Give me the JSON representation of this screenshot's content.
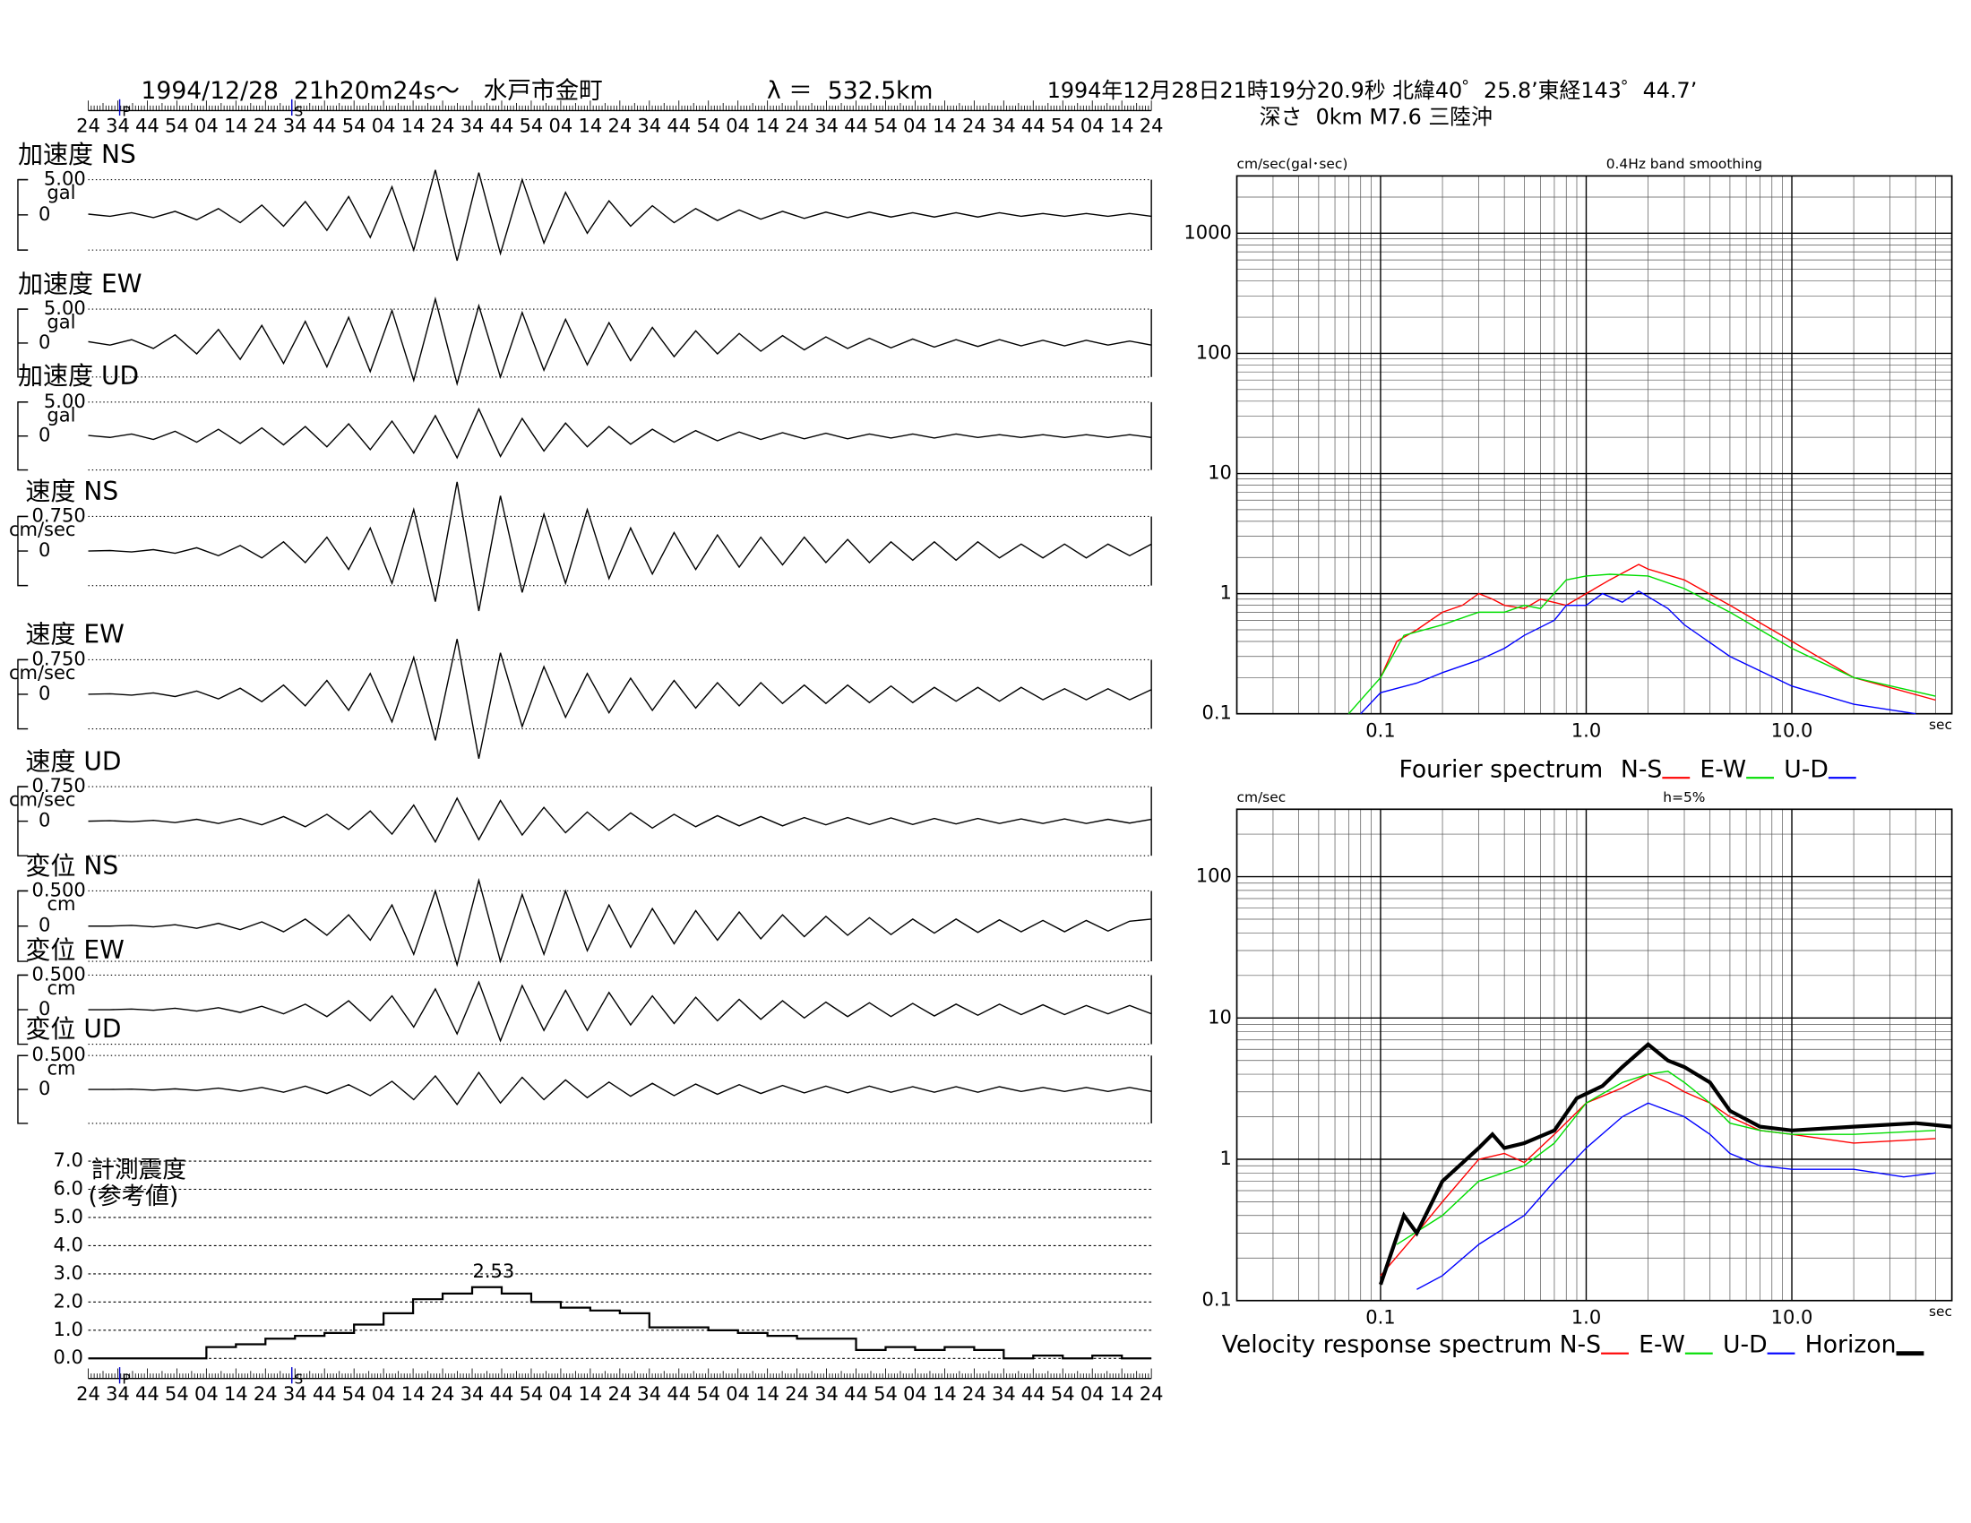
{
  "header": {
    "title": "1994/12/28  21h20m24s～　水戸市金町",
    "distance": "λ ＝  532.5km",
    "origin": "1994年12月28日21時19分20.9秒 北緯40゜25.8’東経143゜44.7’",
    "depth": "深さ  0km M7.6 三陸沖"
  },
  "time_axis": {
    "categories": [
      "24",
      "34",
      "44",
      "54",
      "04",
      "14",
      "24",
      "34",
      "44",
      "54",
      "04",
      "14",
      "24",
      "34",
      "44",
      "54",
      "04",
      "14",
      "24",
      "34",
      "44",
      "54",
      "04",
      "14",
      "24",
      "34",
      "44",
      "54",
      "04",
      "14",
      "24",
      "34",
      "44",
      "54",
      "04",
      "14",
      "24"
    ],
    "markers": [
      "P",
      "S"
    ]
  },
  "chart_data": [
    {
      "type": "wave",
      "title": "加速度 NS",
      "ylabel": "gal",
      "ylim": [
        -5,
        5
      ],
      "yticks": [
        {
          "value": 5,
          "label": "5.00"
        },
        0
      ],
      "color": "#000000",
      "values": [
        0.1,
        -0.2,
        0.3,
        -0.4,
        0.5,
        -0.7,
        0.9,
        -1.1,
        1.4,
        -1.6,
        1.9,
        -2.2,
        2.6,
        -3.2,
        4.0,
        -5.0,
        6.4,
        -6.5,
        6.0,
        -5.5,
        5.0,
        -4.0,
        3.2,
        -2.6,
        2.0,
        -1.6,
        1.3,
        -1.1,
        0.9,
        -0.8,
        0.7,
        -0.6,
        0.5,
        -0.5,
        0.4,
        -0.4,
        0.4,
        -0.3,
        0.3,
        -0.3,
        0.3,
        -0.3,
        0.3,
        -0.2,
        0.2,
        -0.2,
        0.2,
        -0.2,
        0.2,
        -0.2
      ]
    },
    {
      "type": "wave",
      "title": "加速度 EW",
      "ylabel": "gal",
      "ylim": [
        -5,
        5
      ],
      "yticks": [
        {
          "value": 5,
          "label": "5.00"
        },
        0
      ],
      "color": "#000000",
      "values": [
        0.2,
        -0.3,
        0.5,
        -0.8,
        1.2,
        -1.6,
        2.0,
        -2.4,
        2.6,
        -3.0,
        3.2,
        -3.5,
        3.8,
        -4.2,
        4.8,
        -5.5,
        6.5,
        -6.0,
        5.5,
        -5.0,
        4.5,
        -4.0,
        3.5,
        -3.2,
        3.0,
        -2.6,
        2.3,
        -2.0,
        1.8,
        -1.6,
        1.4,
        -1.2,
        1.1,
        -1.0,
        0.9,
        -0.8,
        0.7,
        -0.7,
        0.6,
        -0.6,
        0.5,
        -0.5,
        0.5,
        -0.4,
        0.4,
        -0.4,
        0.4,
        -0.3,
        0.3,
        -0.3
      ]
    },
    {
      "type": "wave",
      "title": "加速度 UD",
      "ylabel": "gal",
      "ylim": [
        -5,
        5
      ],
      "yticks": [
        {
          "value": 5,
          "label": "5.00"
        },
        0
      ],
      "color": "#000000",
      "values": [
        0.1,
        -0.2,
        0.3,
        -0.5,
        0.7,
        -0.9,
        1.0,
        -1.1,
        1.2,
        -1.3,
        1.4,
        -1.6,
        1.8,
        -2.0,
        2.2,
        -2.5,
        3.0,
        -3.2,
        4.0,
        -3.0,
        2.6,
        -2.2,
        1.9,
        -1.6,
        1.4,
        -1.2,
        1.0,
        -0.9,
        0.8,
        -0.7,
        0.6,
        -0.5,
        0.5,
        -0.4,
        0.4,
        -0.4,
        0.3,
        -0.3,
        0.3,
        -0.3,
        0.3,
        -0.2,
        0.2,
        -0.2,
        0.2,
        -0.2,
        0.2,
        -0.2,
        0.2,
        -0.2
      ]
    },
    {
      "type": "wave",
      "title": "速度 NS",
      "ylabel": "cm/sec",
      "ylim": [
        -0.75,
        0.75
      ],
      "yticks": [
        {
          "value": 0.75,
          "label": "0.750"
        },
        0
      ],
      "color": "#000000",
      "values": [
        0,
        0.01,
        -0.02,
        0.03,
        -0.05,
        0.07,
        -0.1,
        0.12,
        -0.15,
        0.2,
        -0.25,
        0.3,
        -0.4,
        0.5,
        -0.7,
        0.9,
        -1.1,
        1.5,
        -1.3,
        1.2,
        -0.9,
        0.8,
        -0.7,
        0.9,
        -0.6,
        0.5,
        -0.5,
        0.4,
        -0.4,
        0.35,
        -0.35,
        0.3,
        -0.3,
        0.3,
        -0.25,
        0.25,
        -0.25,
        0.2,
        -0.2,
        0.2,
        -0.2,
        0.2,
        -0.15,
        0.15,
        -0.15,
        0.15,
        -0.15,
        0.15,
        -0.1,
        0.15
      ]
    },
    {
      "type": "wave",
      "title": "速度 EW",
      "ylabel": "cm/sec",
      "ylim": [
        -0.75,
        0.75
      ],
      "yticks": [
        {
          "value": 0.75,
          "label": "0.750"
        },
        0
      ],
      "color": "#000000",
      "values": [
        0,
        0.01,
        -0.02,
        0.03,
        -0.05,
        0.07,
        -0.1,
        0.13,
        -0.16,
        0.2,
        -0.25,
        0.3,
        -0.35,
        0.45,
        -0.6,
        0.8,
        -1.0,
        1.2,
        -1.4,
        0.9,
        -0.7,
        0.6,
        -0.5,
        0.45,
        -0.4,
        0.35,
        -0.35,
        0.3,
        -0.3,
        0.25,
        -0.25,
        0.25,
        -0.2,
        0.2,
        -0.2,
        0.2,
        -0.18,
        0.18,
        -0.18,
        0.15,
        -0.15,
        0.15,
        -0.15,
        0.15,
        -0.12,
        0.12,
        -0.12,
        0.12,
        -0.12,
        0.1
      ]
    },
    {
      "type": "wave",
      "title": "速度 UD",
      "ylabel": "cm/sec",
      "ylim": [
        -0.75,
        0.75
      ],
      "yticks": [
        {
          "value": 0.75,
          "label": "0.750"
        },
        0
      ],
      "color": "#000000",
      "values": [
        0,
        0.01,
        -0.01,
        0.02,
        -0.03,
        0.04,
        -0.05,
        0.06,
        -0.08,
        0.1,
        -0.12,
        0.15,
        -0.18,
        0.22,
        -0.28,
        0.35,
        -0.45,
        0.5,
        -0.4,
        0.45,
        -0.3,
        0.3,
        -0.25,
        0.2,
        -0.2,
        0.18,
        -0.15,
        0.15,
        -0.12,
        0.12,
        -0.1,
        0.1,
        -0.1,
        0.08,
        -0.08,
        0.08,
        -0.07,
        0.07,
        -0.07,
        0.06,
        -0.06,
        0.06,
        -0.05,
        0.05,
        -0.05,
        0.05,
        -0.05,
        0.04,
        -0.04,
        0.04
      ]
    },
    {
      "type": "wave",
      "title": "変位 NS",
      "ylabel": "cm",
      "ylim": [
        -0.5,
        0.5
      ],
      "yticks": [
        {
          "value": 0.5,
          "label": "0.500"
        },
        0
      ],
      "color": "#000000",
      "values": [
        0,
        0,
        0.01,
        -0.01,
        0.02,
        -0.03,
        0.04,
        -0.05,
        0.06,
        -0.08,
        0.1,
        -0.13,
        0.16,
        -0.2,
        0.3,
        -0.4,
        0.5,
        -0.55,
        0.65,
        -0.5,
        0.45,
        -0.4,
        0.5,
        -0.35,
        0.3,
        -0.3,
        0.25,
        -0.25,
        0.22,
        -0.2,
        0.2,
        -0.18,
        0.16,
        -0.15,
        0.14,
        -0.13,
        0.12,
        -0.12,
        0.1,
        -0.1,
        0.1,
        -0.09,
        0.09,
        -0.08,
        0.08,
        -0.08,
        0.08,
        -0.07,
        0.07,
        0.1
      ]
    },
    {
      "type": "wave",
      "title": "変位 EW",
      "ylabel": "cm",
      "ylim": [
        -0.5,
        0.5
      ],
      "yticks": [
        {
          "value": 0.5,
          "label": "0.500"
        },
        0
      ],
      "color": "#000000",
      "values": [
        0,
        0,
        0.01,
        -0.01,
        0.02,
        -0.02,
        0.03,
        -0.04,
        0.05,
        -0.06,
        0.08,
        -0.1,
        0.13,
        -0.16,
        0.2,
        -0.25,
        0.3,
        -0.35,
        0.4,
        -0.45,
        0.35,
        -0.3,
        0.28,
        -0.3,
        0.25,
        -0.22,
        0.2,
        -0.2,
        0.18,
        -0.16,
        0.15,
        -0.14,
        0.13,
        -0.12,
        0.11,
        -0.1,
        0.1,
        -0.1,
        0.09,
        -0.09,
        0.08,
        -0.08,
        0.08,
        -0.07,
        0.07,
        -0.07,
        0.06,
        -0.06,
        0.06,
        -0.06
      ]
    },
    {
      "type": "wave",
      "title": "変位 UD",
      "ylabel": "cm",
      "ylim": [
        -0.5,
        0.5
      ],
      "yticks": [
        {
          "value": 0.5,
          "label": "0.500"
        },
        0
      ],
      "color": "#000000",
      "values": [
        0,
        0,
        0.005,
        -0.01,
        0.01,
        -0.015,
        0.02,
        -0.025,
        0.03,
        -0.04,
        0.05,
        -0.06,
        0.07,
        -0.09,
        0.12,
        -0.15,
        0.2,
        -0.22,
        0.25,
        -0.2,
        0.18,
        -0.15,
        0.14,
        -0.12,
        0.11,
        -0.1,
        0.09,
        -0.09,
        0.08,
        -0.07,
        0.07,
        -0.06,
        0.06,
        -0.05,
        0.05,
        -0.05,
        0.05,
        -0.04,
        0.04,
        -0.04,
        0.04,
        -0.04,
        0.04,
        -0.03,
        0.03,
        -0.03,
        0.03,
        -0.03,
        0.03,
        -0.03
      ]
    },
    {
      "type": "intensity",
      "title": "計測震度",
      "subtitle": "(参考値)",
      "ylim": [
        0,
        7
      ],
      "yticks": [
        {
          "value": 0,
          "label": "0.0"
        },
        {
          "value": 1,
          "label": "1.0"
        },
        {
          "value": 2,
          "label": "2.0"
        },
        {
          "value": 3,
          "label": "3.0"
        },
        {
          "value": 4,
          "label": "4.0"
        },
        {
          "value": 5,
          "label": "5.0"
        },
        {
          "value": 6,
          "label": "6.0"
        },
        {
          "value": 7,
          "label": "7.0"
        }
      ],
      "grid": true,
      "color": "#000000",
      "values": [
        0,
        0,
        0,
        0,
        0.4,
        0.5,
        0.7,
        0.8,
        0.9,
        1.2,
        1.6,
        2.1,
        2.3,
        2.53,
        2.3,
        2.0,
        1.8,
        1.7,
        1.6,
        1.1,
        1.1,
        1.0,
        0.9,
        0.8,
        0.7,
        0.7,
        0.3,
        0.4,
        0.3,
        0.4,
        0.3,
        0,
        0.1,
        0,
        0.1,
        0,
        0
      ]
    },
    {
      "type": "loglog",
      "title": "Fourier spectrum",
      "subtitle": "0.4Hz band smoothing",
      "ylabel": "cm/sec(gal･sec)",
      "xlabel": "sec",
      "log_x": true,
      "log_y": true,
      "grid": true,
      "xlim": [
        0.02,
        60
      ],
      "ylim": [
        0.1,
        3000
      ],
      "xticks": [
        0.1,
        {
          "value": 1,
          "label": "1.0"
        },
        {
          "value": 10,
          "label": "10.0"
        }
      ],
      "yticks": [
        0.1,
        1,
        10,
        100,
        1000
      ],
      "series": [
        {
          "name": "N-S",
          "color": "#ff0000",
          "x": [
            0.1,
            0.12,
            0.15,
            0.2,
            0.25,
            0.3,
            0.35,
            0.4,
            0.5,
            0.6,
            0.8,
            1.0,
            1.3,
            1.8,
            2,
            3,
            5,
            10,
            20,
            50
          ],
          "values": [
            0.2,
            0.4,
            0.5,
            0.7,
            0.8,
            1.0,
            0.9,
            0.8,
            0.75,
            0.9,
            0.8,
            1.0,
            1.3,
            1.75,
            1.6,
            1.3,
            0.8,
            0.4,
            0.2,
            0.13
          ]
        },
        {
          "name": "E-W",
          "color": "#00dd00",
          "x": [
            0.07,
            0.1,
            0.13,
            0.2,
            0.3,
            0.4,
            0.5,
            0.6,
            0.8,
            1.0,
            1.3,
            2,
            3,
            5,
            10,
            20,
            50
          ],
          "values": [
            0.1,
            0.2,
            0.45,
            0.55,
            0.7,
            0.7,
            0.8,
            0.75,
            1.3,
            1.4,
            1.45,
            1.4,
            1.1,
            0.7,
            0.35,
            0.2,
            0.14
          ]
        },
        {
          "name": "U-D",
          "color": "#0000ff",
          "x": [
            0.08,
            0.1,
            0.15,
            0.2,
            0.3,
            0.4,
            0.5,
            0.7,
            0.8,
            1.0,
            1.2,
            1.5,
            1.8,
            2.5,
            3,
            5,
            10,
            20,
            40
          ],
          "values": [
            0.1,
            0.15,
            0.18,
            0.22,
            0.28,
            0.35,
            0.45,
            0.6,
            0.8,
            0.8,
            1.0,
            0.85,
            1.05,
            0.75,
            0.55,
            0.3,
            0.17,
            0.12,
            0.1
          ]
        }
      ]
    },
    {
      "type": "loglog",
      "title": "Velocity response spectrum",
      "subtitle": "h=5%",
      "ylabel": "cm/sec",
      "xlabel": "sec",
      "log_x": true,
      "log_y": true,
      "grid": true,
      "xlim": [
        0.02,
        60
      ],
      "ylim": [
        0.1,
        300
      ],
      "xticks": [
        0.1,
        {
          "value": 1,
          "label": "1.0"
        },
        {
          "value": 10,
          "label": "10.0"
        }
      ],
      "yticks": [
        0.1,
        1,
        10,
        100
      ],
      "series": [
        {
          "name": "N-S",
          "color": "#ff0000",
          "x": [
            0.1,
            0.15,
            0.2,
            0.3,
            0.4,
            0.5,
            0.7,
            1.0,
            1.5,
            2,
            2.5,
            3,
            4,
            5,
            7,
            10,
            20,
            50
          ],
          "values": [
            0.15,
            0.3,
            0.5,
            1.0,
            1.1,
            0.95,
            1.5,
            2.5,
            3.2,
            4,
            3.5,
            3,
            2.5,
            2,
            1.6,
            1.5,
            1.3,
            1.4
          ]
        },
        {
          "name": "E-W",
          "color": "#00dd00",
          "x": [
            0.12,
            0.2,
            0.3,
            0.5,
            0.7,
            1.0,
            1.5,
            2,
            2.5,
            3,
            4,
            5,
            7,
            10,
            20,
            50
          ],
          "values": [
            0.25,
            0.4,
            0.7,
            0.9,
            1.3,
            2.5,
            3.5,
            4,
            4.2,
            3.5,
            2.5,
            1.8,
            1.6,
            1.5,
            1.5,
            1.6
          ]
        },
        {
          "name": "U-D",
          "color": "#0000ff",
          "x": [
            0.15,
            0.2,
            0.3,
            0.5,
            0.7,
            1.0,
            1.5,
            2,
            3,
            4,
            5,
            7,
            10,
            20,
            35,
            50
          ],
          "values": [
            0.12,
            0.15,
            0.25,
            0.4,
            0.7,
            1.2,
            2.0,
            2.5,
            2.0,
            1.5,
            1.1,
            0.9,
            0.85,
            0.85,
            0.75,
            0.8
          ]
        },
        {
          "name": "Horizon",
          "color": "#000000",
          "line_width": 3,
          "x": [
            0.1,
            0.13,
            0.15,
            0.2,
            0.3,
            0.35,
            0.4,
            0.5,
            0.7,
            0.9,
            1.2,
            1.5,
            2,
            2.5,
            3,
            4,
            5,
            7,
            10,
            20,
            40,
            60
          ],
          "values": [
            0.13,
            0.4,
            0.3,
            0.7,
            1.2,
            1.5,
            1.2,
            1.3,
            1.6,
            2.7,
            3.3,
            4.5,
            6.5,
            5,
            4.5,
            3.5,
            2.2,
            1.7,
            1.6,
            1.7,
            1.8,
            1.7
          ]
        }
      ]
    }
  ]
}
